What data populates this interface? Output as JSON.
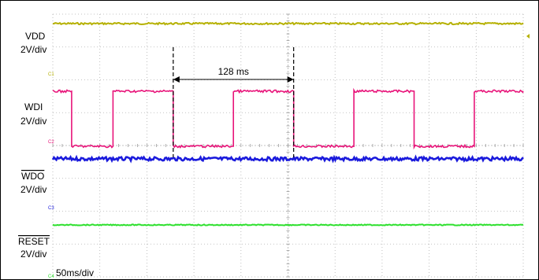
{
  "chart_data": {
    "type": "line",
    "title": "",
    "timebase": "50ms/div",
    "grid": {
      "x_divisions": 10,
      "y_divisions": 8,
      "dotted": true
    },
    "x_range_ms": [
      0,
      500
    ],
    "series": [
      {
        "name": "VDD",
        "scale": "2V/div",
        "channel_marker": "C1",
        "color": "#b5b000",
        "waveform": "dc",
        "level": "high"
      },
      {
        "name": "WDI",
        "scale": "2V/div",
        "channel_marker": "C2",
        "color": "#e8157a",
        "waveform": "square",
        "x": [
          0,
          20,
          20,
          64,
          64,
          128,
          128,
          192,
          192,
          256,
          256,
          320,
          320,
          384,
          384,
          448,
          448,
          500
        ],
        "y": [
          1,
          1,
          0,
          0,
          1,
          1,
          0,
          0,
          1,
          1,
          0,
          0,
          1,
          1,
          0,
          0,
          1,
          1
        ]
      },
      {
        "name": "WDO",
        "scale": "2V/div",
        "channel_marker": "C3",
        "color": "#1a1adc",
        "waveform": "dc",
        "level": "high",
        "overline": true
      },
      {
        "name": "RESET",
        "scale": "2V/div",
        "channel_marker": "C4",
        "color": "#2ee02e",
        "waveform": "dc",
        "level": "high",
        "overline": true
      }
    ],
    "annotations": [
      {
        "text": "128 ms",
        "x_start_ms": 128,
        "x_end_ms": 256,
        "type": "interval-arrow"
      }
    ]
  }
}
